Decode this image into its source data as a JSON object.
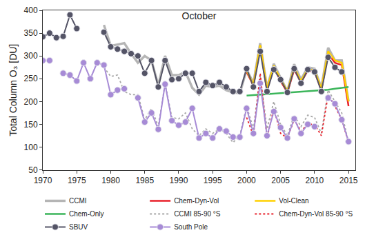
{
  "chart_data": {
    "type": "line",
    "title": "October",
    "y_label": "Total Column O₃ [DU]",
    "xlim": [
      1970,
      2016
    ],
    "xticks": [
      1970,
      1975,
      1980,
      1985,
      1990,
      1995,
      2000,
      2005,
      2010,
      2015
    ],
    "ylim": [
      50,
      400
    ],
    "yticks": [
      50,
      100,
      150,
      200,
      250,
      300,
      350,
      400
    ],
    "grid": false,
    "legend": "bottom",
    "series": [
      {
        "name": "CCMI",
        "color": "#b5b5b5",
        "line_style": "solid",
        "x": [
          1979,
          1980,
          1981,
          1982,
          1983,
          1984,
          1985,
          1986,
          1987,
          1988,
          1989,
          1990,
          1991,
          1992,
          1993,
          1994,
          1995,
          1996,
          1997,
          1998,
          1999,
          2000,
          2001,
          2002,
          2003,
          2004,
          2005,
          2006,
          2007,
          2008,
          2009,
          2010,
          2011,
          2012,
          2013,
          2014,
          2015
        ],
        "values": [
          368,
          322,
          325,
          328,
          305,
          285,
          300,
          290,
          235,
          300,
          258,
          258,
          265,
          230,
          215,
          235,
          232,
          235,
          225,
          220,
          218,
          270,
          240,
          328,
          230,
          283,
          252,
          222,
          282,
          248,
          275,
          272,
          230,
          318,
          290,
          290,
          200
        ]
      },
      {
        "name": "Chem-Dyn-Vol",
        "color": "#e8202a",
        "line_style": "solid",
        "x": [
          2000,
          2001,
          2002,
          2003,
          2004,
          2005,
          2006,
          2007,
          2008,
          2009,
          2010,
          2011,
          2012,
          2013,
          2014,
          2015
        ],
        "values": [
          265,
          235,
          320,
          225,
          275,
          245,
          220,
          270,
          242,
          268,
          265,
          225,
          305,
          285,
          280,
          190
        ]
      },
      {
        "name": "Vol-Clean",
        "color": "#ffd000",
        "line_style": "solid",
        "x": [
          2000,
          2001,
          2002,
          2003,
          2004,
          2005,
          2006,
          2007,
          2008,
          2009,
          2010,
          2011,
          2012,
          2013,
          2014,
          2015
        ],
        "values": [
          268,
          237,
          324,
          228,
          279,
          248,
          223,
          274,
          245,
          271,
          268,
          228,
          310,
          290,
          285,
          200
        ]
      },
      {
        "name": "Chem-Only",
        "color": "#3bb55a",
        "line_style": "solid",
        "x": [
          2000,
          2001,
          2002,
          2003,
          2004,
          2005,
          2006,
          2007,
          2008,
          2009,
          2010,
          2011,
          2012,
          2013,
          2014,
          2015
        ],
        "values": [
          213,
          214,
          215,
          216,
          217,
          218,
          219,
          220,
          221,
          222,
          224,
          225,
          226,
          228,
          230,
          232
        ]
      },
      {
        "name": "CCMI 85-90 °S",
        "color": "#a8a8a8",
        "line_style": "dot",
        "x": [
          1979,
          1980,
          1981,
          1982,
          1983,
          1984,
          1985,
          1986,
          1987,
          1988,
          1989,
          1990,
          1991,
          1992,
          1993,
          1994,
          1995,
          1996,
          1997,
          1998,
          1999,
          2000,
          2001,
          2002,
          2003,
          2004,
          2005,
          2006,
          2007,
          2008,
          2009,
          2010,
          2011,
          2012,
          2013,
          2014,
          2015
        ],
        "values": [
          275,
          255,
          258,
          222,
          215,
          215,
          160,
          185,
          145,
          240,
          165,
          162,
          175,
          140,
          125,
          140,
          130,
          140,
          130,
          110,
          125,
          190,
          140,
          255,
          140,
          200,
          150,
          125,
          170,
          145,
          170,
          165,
          130,
          225,
          200,
          175,
          110
        ]
      },
      {
        "name": "Chem-Dyn-Vol 85-90 °S",
        "color": "#e8202a",
        "line_style": "dot",
        "x": [
          2000,
          2001,
          2002,
          2003,
          2004,
          2005,
          2006,
          2007,
          2008,
          2009,
          2010,
          2011,
          2012,
          2013,
          2014,
          2015
        ],
        "values": [
          165,
          125,
          262,
          120,
          185,
          130,
          120,
          160,
          135,
          150,
          150,
          125,
          215,
          190,
          160,
          110
        ]
      },
      {
        "name": "SBUV",
        "color": "#545466",
        "line_style": "solid",
        "marker": "circle",
        "x": [
          1970,
          1971,
          1972,
          1973,
          1974,
          1975,
          1976,
          1977,
          1978,
          1979,
          1980,
          1981,
          1982,
          1983,
          1984,
          1985,
          1986,
          1987,
          1988,
          1989,
          1990,
          1991,
          1992,
          1993,
          1994,
          1995,
          1996,
          1997,
          1998,
          1999,
          2000,
          2001,
          2002,
          2003,
          2004,
          2005,
          2006,
          2007,
          2008,
          2009,
          2010,
          2011,
          2012,
          2013,
          2014
        ],
        "values": [
          342,
          350,
          340,
          343,
          390,
          360,
          null,
          null,
          null,
          352,
          320,
          315,
          310,
          305,
          300,
          262,
          290,
          232,
          290,
          248,
          250,
          262,
          262,
          222,
          242,
          235,
          242,
          232,
          222,
          222,
          272,
          232,
          310,
          222,
          270,
          248,
          220,
          272,
          240,
          270,
          265,
          222,
          297,
          275,
          265
        ]
      },
      {
        "name": "South Pole",
        "color": "#a78bd6",
        "line_style": "solid",
        "marker": "circle",
        "x": [
          1970,
          1971,
          1972,
          1973,
          1974,
          1975,
          1976,
          1977,
          1978,
          1979,
          1980,
          1981,
          1982,
          1983,
          1984,
          1985,
          1986,
          1987,
          1988,
          1989,
          1990,
          1991,
          1992,
          1993,
          1994,
          1995,
          1996,
          1997,
          1998,
          1999,
          2000,
          2001,
          2002,
          2003,
          2004,
          2005,
          2006,
          2007,
          2008,
          2009,
          2010,
          2011,
          2012,
          2013,
          2014,
          2015
        ],
        "values": [
          290,
          290,
          null,
          262,
          258,
          245,
          285,
          250,
          285,
          280,
          215,
          225,
          228,
          null,
          208,
          155,
          175,
          139,
          238,
          158,
          148,
          155,
          185,
          120,
          130,
          120,
          140,
          135,
          122,
          122,
          185,
          130,
          240,
          125,
          178,
          143,
          120,
          162,
          130,
          150,
          145,
          null,
          208,
          195,
          160,
          112
        ]
      }
    ]
  }
}
